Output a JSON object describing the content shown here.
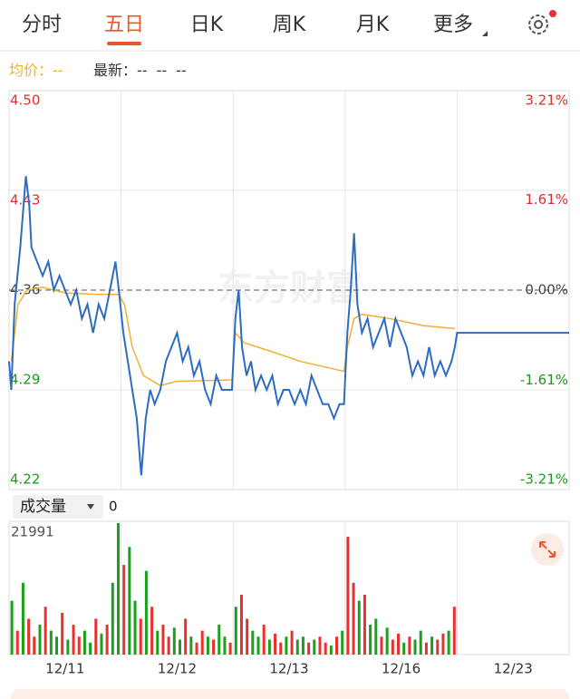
{
  "tabs": [
    "分时",
    "五日",
    "日K",
    "周K",
    "月K",
    "更多"
  ],
  "active_tab": 1,
  "legend_separator": "：",
  "legend_readout": {
    "average": "--",
    "latest": [
      "--",
      "--",
      "--"
    ]
  },
  "watermark": "东方财富",
  "volume_header": {
    "label": "成交量",
    "readout": 0
  },
  "chart_data": [
    {
      "type": "line",
      "xlim": [
        0,
        5
      ],
      "ylim": [
        4.22,
        4.5
      ],
      "y2lim": [
        -3.21,
        3.21
      ],
      "yticks": [
        {
          "value": 4.5,
          "label": "4.50"
        },
        4.43,
        4.36,
        4.29,
        4.22
      ],
      "y2ticks": [
        {
          "value": 3.21,
          "label": "3.21%"
        },
        {
          "value": 1.61,
          "label": "1.61%"
        },
        {
          "value": 0,
          "label": "0.00%"
        },
        {
          "value": -1.61,
          "label": "-1.61%"
        },
        {
          "value": -3.21,
          "label": "-3.21%"
        }
      ],
      "xticks": [
        {
          "value": 0.5,
          "label": "12/11"
        },
        {
          "value": 1.5,
          "label": "12/12"
        },
        {
          "value": 2.5,
          "label": "12/13"
        },
        {
          "value": 3.5,
          "label": "12/16"
        },
        {
          "value": 4.5,
          "label": "12/23"
        }
      ],
      "baseline": 4.36,
      "up_color": "#e0302c",
      "down_color": "#1a9a1a",
      "flat_color": "#444444",
      "series": [
        {
          "name": "最新",
          "color": "#2e6cc0",
          "x": [
            0,
            0.02,
            0.05,
            0.1,
            0.15,
            0.18,
            0.2,
            0.25,
            0.3,
            0.35,
            0.4,
            0.45,
            0.5,
            0.55,
            0.6,
            0.65,
            0.7,
            0.75,
            0.8,
            0.85,
            0.9,
            0.95,
            0.98,
            1.02,
            1.06,
            1.1,
            1.14,
            1.18,
            1.22,
            1.26,
            1.3,
            1.35,
            1.4,
            1.45,
            1.5,
            1.55,
            1.6,
            1.65,
            1.7,
            1.75,
            1.8,
            1.85,
            1.9,
            1.95,
            1.99,
            2.02,
            2.05,
            2.08,
            2.12,
            2.16,
            2.2,
            2.25,
            2.3,
            2.35,
            2.4,
            2.45,
            2.5,
            2.55,
            2.6,
            2.65,
            2.7,
            2.75,
            2.8,
            2.85,
            2.9,
            2.95,
            2.99,
            3.02,
            3.05,
            3.08,
            3.11,
            3.15,
            3.2,
            3.25,
            3.3,
            3.35,
            3.4,
            3.45,
            3.5,
            3.55,
            3.6,
            3.65,
            3.7,
            3.75,
            3.8,
            3.85,
            3.9,
            3.95,
            3.98,
            4.0,
            5.0
          ],
          "values": [
            4.31,
            4.29,
            4.35,
            4.39,
            4.44,
            4.42,
            4.39,
            4.38,
            4.37,
            4.38,
            4.36,
            4.37,
            4.36,
            4.35,
            4.36,
            4.34,
            4.35,
            4.33,
            4.35,
            4.34,
            4.36,
            4.38,
            4.36,
            4.33,
            4.31,
            4.29,
            4.27,
            4.23,
            4.27,
            4.29,
            4.28,
            4.29,
            4.31,
            4.32,
            4.33,
            4.31,
            4.32,
            4.3,
            4.31,
            4.29,
            4.28,
            4.3,
            4.29,
            4.29,
            4.29,
            4.34,
            4.36,
            4.32,
            4.3,
            4.31,
            4.29,
            4.3,
            4.29,
            4.3,
            4.28,
            4.29,
            4.29,
            4.28,
            4.29,
            4.28,
            4.3,
            4.29,
            4.28,
            4.28,
            4.27,
            4.28,
            4.28,
            4.33,
            4.36,
            4.4,
            4.35,
            4.33,
            4.34,
            4.32,
            4.33,
            4.34,
            4.32,
            4.34,
            4.33,
            4.32,
            4.3,
            4.31,
            4.3,
            4.32,
            4.3,
            4.31,
            4.3,
            4.31,
            4.32,
            4.33,
            4.33
          ]
        },
        {
          "name": "均价",
          "color": "#f0b030",
          "x": [
            0.02,
            0.08,
            0.16,
            0.3,
            0.5,
            0.8,
            0.98,
            1.03,
            1.1,
            1.2,
            1.35,
            1.5,
            1.99,
            2.02,
            2.1,
            2.3,
            2.6,
            2.99,
            3.02,
            3.08,
            3.15,
            3.4,
            3.7,
            3.98
          ],
          "values": [
            4.31,
            4.35,
            4.36,
            4.362,
            4.358,
            4.357,
            4.357,
            4.35,
            4.32,
            4.3,
            4.293,
            4.296,
            4.297,
            4.33,
            4.323,
            4.318,
            4.31,
            4.303,
            4.32,
            4.34,
            4.343,
            4.34,
            4.335,
            4.333
          ]
        }
      ]
    },
    {
      "type": "bar",
      "xlim": [
        0,
        5
      ],
      "ylim": [
        0,
        21991
      ],
      "yticks": [
        21991
      ],
      "x": [
        0.025,
        0.075,
        0.125,
        0.175,
        0.225,
        0.275,
        0.325,
        0.375,
        0.425,
        0.475,
        0.525,
        0.575,
        0.625,
        0.675,
        0.725,
        0.775,
        0.825,
        0.875,
        0.925,
        0.975,
        1.025,
        1.075,
        1.125,
        1.175,
        1.225,
        1.275,
        1.325,
        1.375,
        1.425,
        1.475,
        1.525,
        1.575,
        1.625,
        1.675,
        1.725,
        1.775,
        1.825,
        1.875,
        1.925,
        1.975,
        2.025,
        2.075,
        2.125,
        2.175,
        2.225,
        2.275,
        2.325,
        2.375,
        2.425,
        2.475,
        2.525,
        2.575,
        2.625,
        2.675,
        2.725,
        2.775,
        2.825,
        2.875,
        2.925,
        2.975,
        3.025,
        3.075,
        3.125,
        3.175,
        3.225,
        3.275,
        3.325,
        3.375,
        3.425,
        3.475,
        3.525,
        3.575,
        3.625,
        3.675,
        3.725,
        3.775,
        3.825,
        3.875,
        3.925,
        3.975
      ],
      "values": [
        9000,
        4000,
        12000,
        6000,
        3000,
        5000,
        8000,
        4000,
        3000,
        7000,
        2500,
        5000,
        3000,
        4000,
        2000,
        6000,
        3500,
        5000,
        12000,
        21991,
        15000,
        18000,
        9000,
        6000,
        14000,
        8000,
        4000,
        5000,
        3000,
        4500,
        2500,
        6000,
        3000,
        2000,
        4000,
        3000,
        2500,
        5000,
        3000,
        2000,
        8000,
        10000,
        6000,
        4000,
        3000,
        5000,
        2500,
        3500,
        2000,
        3000,
        4000,
        2500,
        3000,
        2000,
        2500,
        3000,
        2000,
        1500,
        3000,
        4000,
        19700,
        12000,
        9000,
        10000,
        5000,
        6000,
        3000,
        4500,
        2500,
        3500,
        2000,
        3000,
        2500,
        4000,
        2000,
        3000,
        2500,
        3500,
        4000,
        8000
      ],
      "colors": [
        "#1aa01a",
        "#e8312f",
        "#1aa01a",
        "#e8312f",
        "#e8312f",
        "#1aa01a",
        "#e8312f",
        "#1aa01a",
        "#1aa01a",
        "#e8312f",
        "#1aa01a",
        "#e8312f",
        "#e8312f",
        "#1aa01a",
        "#1aa01a",
        "#e8312f",
        "#1aa01a",
        "#e8312f",
        "#1aa01a",
        "#1aa01a",
        "#e8312f",
        "#1aa01a",
        "#1aa01a",
        "#e8312f",
        "#1aa01a",
        "#e8312f",
        "#1aa01a",
        "#e8312f",
        "#e8312f",
        "#1aa01a",
        "#1aa01a",
        "#e8312f",
        "#1aa01a",
        "#e8312f",
        "#e8312f",
        "#1aa01a",
        "#e8312f",
        "#1aa01a",
        "#1aa01a",
        "#e8312f",
        "#1aa01a",
        "#e8312f",
        "#e8312f",
        "#1aa01a",
        "#1aa01a",
        "#e8312f",
        "#1aa01a",
        "#e8312f",
        "#e8312f",
        "#1aa01a",
        "#e8312f",
        "#1aa01a",
        "#1aa01a",
        "#e8312f",
        "#1aa01a",
        "#e8312f",
        "#e8312f",
        "#1aa01a",
        "#e8312f",
        "#1aa01a",
        "#e8312f",
        "#e8312f",
        "#1aa01a",
        "#e8312f",
        "#1aa01a",
        "#1aa01a",
        "#e8312f",
        "#1aa01a",
        "#e8312f",
        "#e8312f",
        "#1aa01a",
        "#e8312f",
        "#1aa01a",
        "#1aa01a",
        "#e8312f",
        "#1aa01a",
        "#e8312f",
        "#e8312f",
        "#1aa01a",
        "#e8312f"
      ]
    }
  ]
}
